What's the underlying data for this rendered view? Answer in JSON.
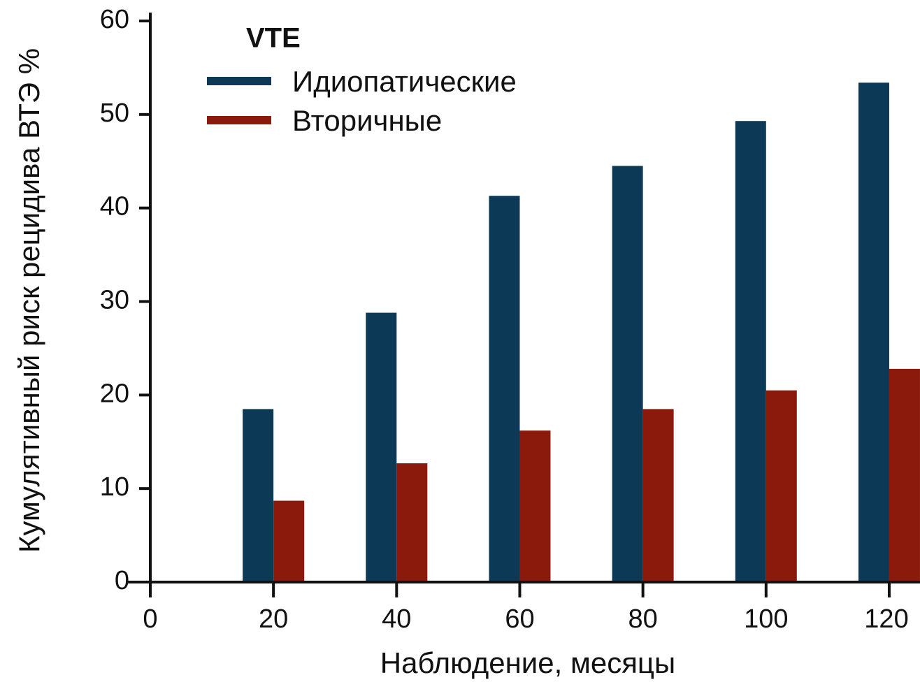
{
  "chart_data": {
    "type": "bar",
    "xlabel": "Наблюдение, месяцы",
    "ylabel": "Кумулятивный риск рецидива ВТЭ %",
    "legend_title": "VTE",
    "legend": "upper left",
    "x": [
      20,
      40,
      60,
      80,
      100,
      120
    ],
    "series": [
      {
        "name": "Идиопатические",
        "color": "#0b3956",
        "values": [
          18.5,
          28.8,
          41.3,
          44.5,
          49.3,
          53.4
        ]
      },
      {
        "name": "Вторичные",
        "color": "#8b1a0c",
        "values": [
          8.7,
          12.7,
          16.2,
          18.5,
          20.5,
          22.8
        ]
      }
    ],
    "xlim": [
      0,
      125
    ],
    "xticks": [
      0,
      20,
      40,
      60,
      80,
      100,
      120
    ],
    "ylim": [
      0,
      60
    ],
    "yticks": [
      0,
      10,
      20,
      30,
      40,
      50,
      60
    ]
  }
}
